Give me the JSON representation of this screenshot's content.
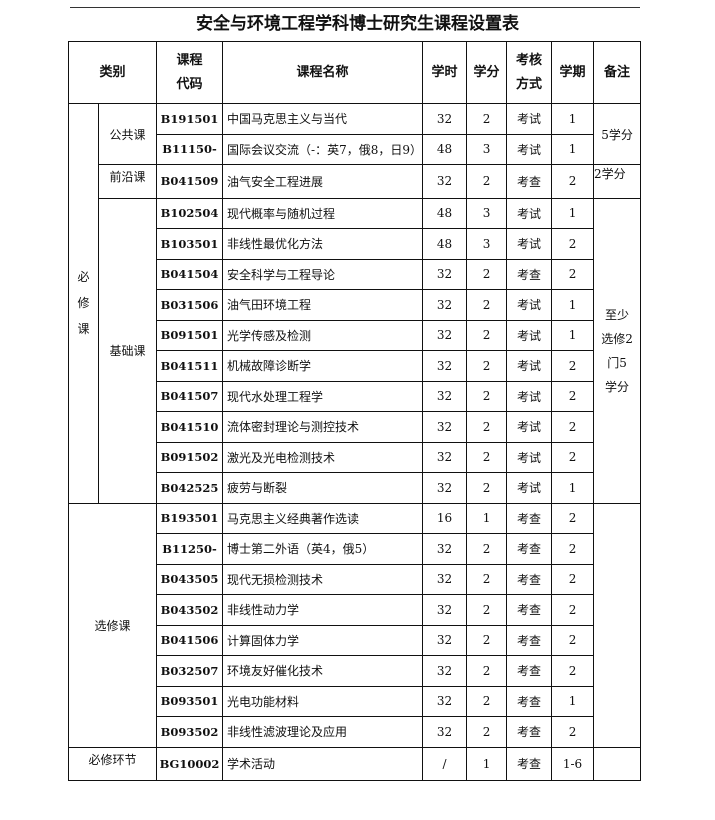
{
  "title": "安全与环境工程学科博士研究生课程设置表",
  "headers": [
    "类别",
    "课程代码",
    "课程名称",
    "学时",
    "学分",
    "考核方式",
    "学期",
    "备注"
  ],
  "header_lines": {
    "code": [
      "课程",
      "代码"
    ],
    "exam": [
      "考核",
      "方式"
    ]
  },
  "groups": {
    "required": "必修课",
    "public": "公共课",
    "frontier": "前沿课",
    "basic": "基础课",
    "elective": "选修课",
    "link": "必修环节"
  },
  "notes": {
    "public": "5学分",
    "frontier": "2学分",
    "basic": "至少选修2门5学分"
  },
  "rows": [
    [
      "B191501",
      "中国马克思主义与当代",
      "32",
      "2",
      "考试",
      "1"
    ],
    [
      "B11150-",
      "国际会议交流（-：英7，俄8，日9）",
      "48",
      "3",
      "考试",
      "1"
    ],
    [
      "B041509",
      "油气安全工程进展",
      "32",
      "2",
      "考查",
      "2"
    ],
    [
      "B102504",
      "现代概率与随机过程",
      "48",
      "3",
      "考试",
      "1"
    ],
    [
      "B103501",
      "非线性最优化方法",
      "48",
      "3",
      "考试",
      "2"
    ],
    [
      "B041504",
      "安全科学与工程导论",
      "32",
      "2",
      "考查",
      "2"
    ],
    [
      "B031506",
      "油气田环境工程",
      "32",
      "2",
      "考试",
      "1"
    ],
    [
      "B091501",
      "光学传感及检测",
      "32",
      "2",
      "考试",
      "1"
    ],
    [
      "B041511",
      "机械故障诊断学",
      "32",
      "2",
      "考试",
      "2"
    ],
    [
      "B041507",
      "现代水处理工程学",
      "32",
      "2",
      "考试",
      "2"
    ],
    [
      "B041510",
      "流体密封理论与测控技术",
      "32",
      "2",
      "考试",
      "2"
    ],
    [
      "B091502",
      "激光及光电检测技术",
      "32",
      "2",
      "考试",
      "2"
    ],
    [
      "B042525",
      "疲劳与断裂",
      "32",
      "2",
      "考试",
      "1"
    ],
    [
      "B193501",
      "马克思主义经典著作选读",
      "16",
      "1",
      "考查",
      "2"
    ],
    [
      "B11250-",
      "博士第二外语（英4，俄5）",
      "32",
      "2",
      "考查",
      "2"
    ],
    [
      "B043505",
      "现代无损检测技术",
      "32",
      "2",
      "考查",
      "2"
    ],
    [
      "B043502",
      "非线性动力学",
      "32",
      "2",
      "考查",
      "2"
    ],
    [
      "B041506",
      "计算固体力学",
      "32",
      "2",
      "考查",
      "2"
    ],
    [
      "B032507",
      "环境友好催化技术",
      "32",
      "2",
      "考查",
      "2"
    ],
    [
      "B093501",
      "光电功能材料",
      "32",
      "2",
      "考查",
      "1"
    ],
    [
      "B093502",
      "非线性滤波理论及应用",
      "32",
      "2",
      "考查",
      "2"
    ],
    [
      "BG10002",
      "学术活动",
      "/",
      "1",
      "考查",
      "1-6"
    ]
  ]
}
